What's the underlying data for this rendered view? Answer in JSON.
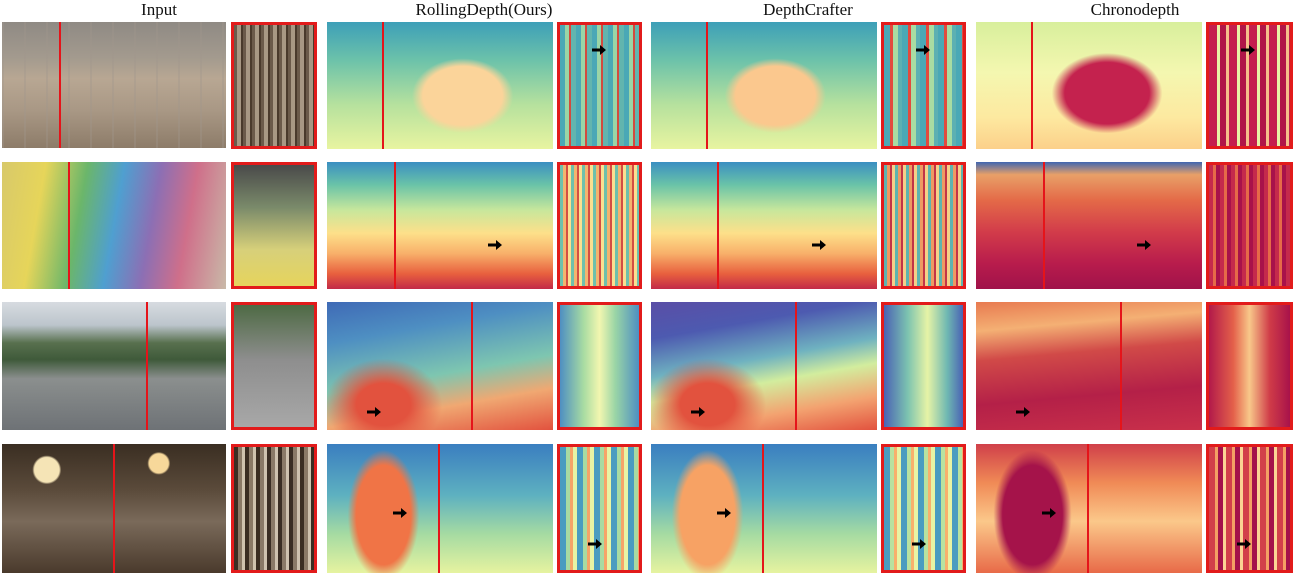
{
  "columns": [
    {
      "key": "input",
      "label": "Input"
    },
    {
      "key": "rollingdepth",
      "label": "RollingDepth(Ours)"
    },
    {
      "key": "depthcrafter",
      "label": "DepthCrafter"
    },
    {
      "key": "chronodepth",
      "label": "Chronodepth"
    }
  ],
  "accent_colors": {
    "scanline": "#e5141a",
    "slice_border": "#e21b1b",
    "arrow": "#000000"
  }
}
